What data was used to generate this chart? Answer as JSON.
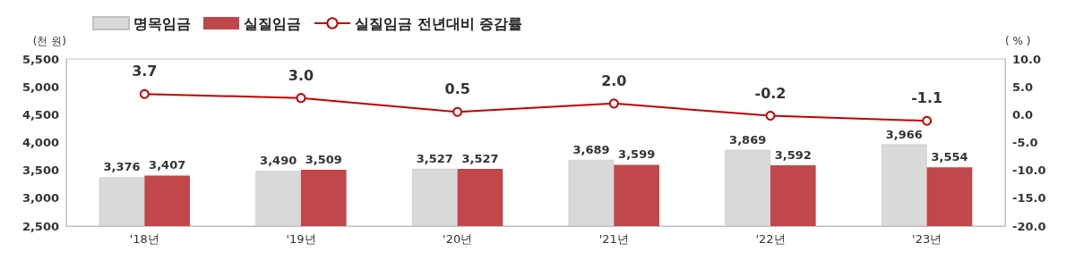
{
  "chart_data": {
    "type": "bar",
    "categories": [
      "'18년",
      "'19년",
      "'20년",
      "'21년",
      "'22년",
      "'23년"
    ],
    "ylabel": "(천 원)",
    "y2label": "( % )",
    "ylim": [
      2500,
      5500
    ],
    "yticks": [
      {
        "value": 2500,
        "label": "2,500"
      },
      {
        "value": 3000,
        "label": "3,000"
      },
      {
        "value": 3500,
        "label": "3,500"
      },
      {
        "value": 4000,
        "label": "4,000"
      },
      {
        "value": 4500,
        "label": "4,500"
      },
      {
        "value": 5000,
        "label": "5,000"
      },
      {
        "value": 5500,
        "label": "5,500"
      }
    ],
    "y2lim": [
      -20,
      10
    ],
    "y2ticks": [
      {
        "value": -20,
        "label": "-20.0"
      },
      {
        "value": -15,
        "label": "-15.0"
      },
      {
        "value": -10,
        "label": "-10.0"
      },
      {
        "value": -5,
        "label": "-5.0"
      },
      {
        "value": 0,
        "label": "0.0"
      },
      {
        "value": 5,
        "label": "5.0"
      },
      {
        "value": 10,
        "label": "10.0"
      }
    ],
    "legend": "top left",
    "grid": false,
    "marker": "circle",
    "series": [
      {
        "name": "명목임금",
        "color": "#d9d9d9",
        "values": [
          3376,
          3490,
          3527,
          3689,
          3869,
          3966
        ],
        "value_labels": [
          "3,376",
          "3,490",
          "3,527",
          "3,689",
          "3,869",
          "3,966"
        ]
      },
      {
        "name": "실질임금",
        "color": "#c0474a",
        "values": [
          3407,
          3509,
          3527,
          3599,
          3592,
          3554
        ],
        "value_labels": [
          "3,407",
          "3,509",
          "3,527",
          "3,599",
          "3,592",
          "3,554"
        ]
      },
      {
        "name": "실질임금 전년대비 증감률",
        "type": "line",
        "axis": "y2",
        "color": "#c00000",
        "values": [
          3.7,
          3.0,
          0.5,
          2.0,
          -0.2,
          -1.1
        ],
        "value_labels": [
          "3.7",
          "3.0",
          "0.5",
          "2.0",
          "-0.2",
          "-1.1"
        ]
      }
    ]
  }
}
